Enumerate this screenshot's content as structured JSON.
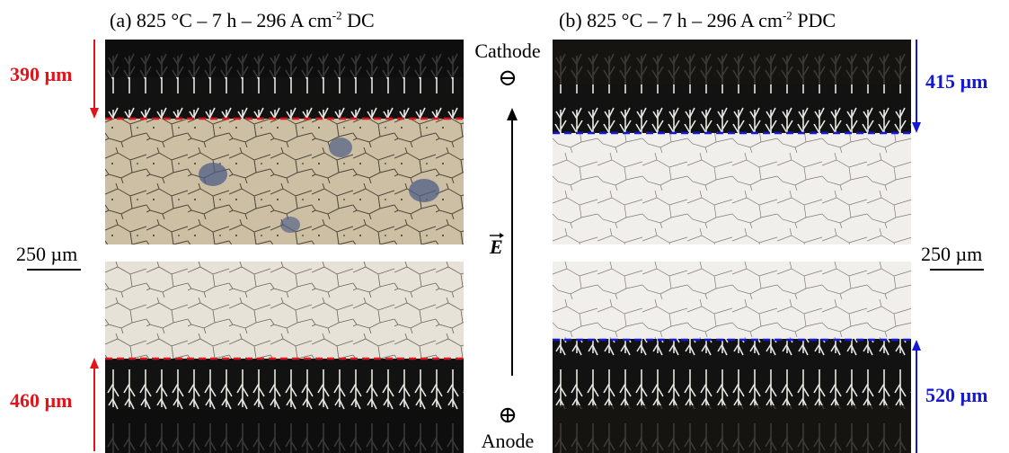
{
  "panels": {
    "a": {
      "title_prefix": "(a) 825 °C – 7 h – 296 A cm",
      "title_exp": "-2",
      "title_suffix": " DC",
      "top_thickness": "390 µm",
      "bottom_thickness": "460 µm",
      "marker_color": "#e0151b"
    },
    "b": {
      "title_prefix": "(b) 825 °C – 7 h – 296 A cm",
      "title_exp": "-2",
      "title_suffix": " PDC",
      "top_thickness": "415 µm",
      "bottom_thickness": "520 µm",
      "marker_color": "#1418d8"
    }
  },
  "center": {
    "cathode_label": "Cathode",
    "cathode_symbol": "⊖",
    "field_symbol": "E",
    "anode_symbol": "⊕",
    "anode_label": "Anode"
  },
  "scale_bar": {
    "left_label": "250 µm",
    "right_label": "250 µm"
  }
}
